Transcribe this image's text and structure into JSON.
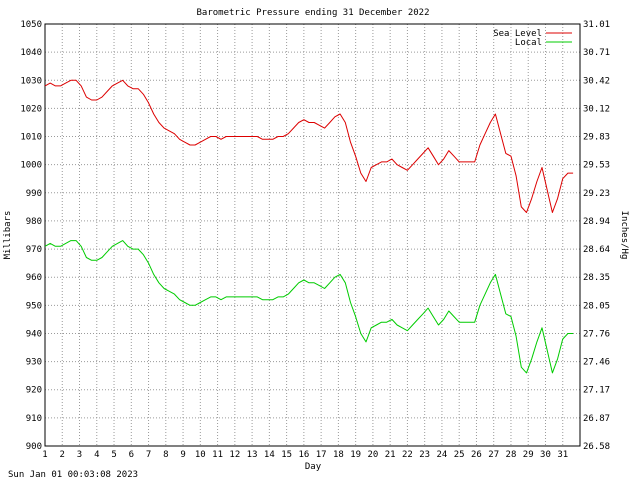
{
  "chart_data": {
    "type": "line",
    "title": "Barometric Pressure ending 31 December 2022",
    "xlabel": "Day",
    "ylabel": "Millibars",
    "ylabel_right": "Inches/Hg",
    "footer": "Sun Jan 01 00:03:08 2023",
    "xlim": [
      1,
      32
    ],
    "ylim": [
      900,
      1050
    ],
    "grid": true,
    "legend_position": "top-right",
    "x_ticks": [
      "1",
      "2",
      "3",
      "4",
      "5",
      "6",
      "7",
      "8",
      "9",
      "10",
      "11",
      "12",
      "13",
      "14",
      "15",
      "16",
      "17",
      "18",
      "19",
      "20",
      "21",
      "22",
      "23",
      "24",
      "25",
      "26",
      "27",
      "28",
      "29",
      "30",
      "31"
    ],
    "y_ticks_left": [
      "1050",
      "1040",
      "1030",
      "1020",
      "1010",
      "1000",
      "990",
      "980",
      "970",
      "960",
      "950",
      "940",
      "930",
      "920",
      "910",
      "900"
    ],
    "y_ticks_right": [
      "31.01",
      "30.71",
      "30.42",
      "30.12",
      "29.83",
      "29.53",
      "29.23",
      "28.94",
      "28.64",
      "28.35",
      "28.05",
      "27.76",
      "27.46",
      "27.17",
      "26.87",
      "26.58"
    ],
    "series": [
      {
        "name": "Sea Level",
        "color": "#dd0000",
        "x": [
          1.0,
          1.3,
          1.6,
          1.9,
          2.2,
          2.5,
          2.8,
          3.1,
          3.4,
          3.7,
          4.0,
          4.3,
          4.6,
          4.9,
          5.2,
          5.5,
          5.8,
          6.1,
          6.4,
          6.7,
          7.0,
          7.3,
          7.6,
          7.9,
          8.2,
          8.5,
          8.8,
          9.1,
          9.4,
          9.7,
          10.0,
          10.3,
          10.6,
          10.9,
          11.2,
          11.5,
          11.8,
          12.1,
          12.4,
          12.7,
          13.0,
          13.3,
          13.6,
          13.9,
          14.2,
          14.5,
          14.8,
          15.1,
          15.4,
          15.7,
          16.0,
          16.3,
          16.6,
          16.9,
          17.2,
          17.5,
          17.8,
          18.1,
          18.4,
          18.7,
          19.0,
          19.3,
          19.6,
          19.9,
          20.2,
          20.5,
          20.8,
          21.1,
          21.4,
          21.7,
          22.0,
          22.3,
          22.6,
          22.9,
          23.2,
          23.5,
          23.8,
          24.1,
          24.4,
          24.7,
          25.0,
          25.3,
          25.6,
          25.9,
          26.2,
          26.5,
          26.8,
          27.1,
          27.4,
          27.7,
          28.0,
          28.3,
          28.6,
          28.9,
          29.2,
          29.5,
          29.8,
          30.1,
          30.4,
          30.7,
          31.0,
          31.3,
          31.6
        ],
        "values": [
          1028,
          1029,
          1028,
          1028,
          1029,
          1030,
          1030,
          1028,
          1024,
          1023,
          1023,
          1024,
          1026,
          1028,
          1029,
          1030,
          1028,
          1027,
          1027,
          1025,
          1022,
          1018,
          1015,
          1013,
          1012,
          1011,
          1009,
          1008,
          1007,
          1007,
          1008,
          1009,
          1010,
          1010,
          1009,
          1010,
          1010,
          1010,
          1010,
          1010,
          1010,
          1010,
          1009,
          1009,
          1009,
          1010,
          1010,
          1011,
          1013,
          1015,
          1016,
          1015,
          1015,
          1014,
          1013,
          1015,
          1017,
          1018,
          1015,
          1008,
          1003,
          997,
          994,
          999,
          1000,
          1001,
          1001,
          1002,
          1000,
          999,
          998,
          1000,
          1002,
          1004,
          1006,
          1003,
          1000,
          1002,
          1005,
          1003,
          1001,
          1001,
          1001,
          1001,
          1007,
          1011,
          1015,
          1018,
          1011,
          1004,
          1003,
          996,
          985,
          983,
          988,
          994,
          999,
          991,
          983,
          988,
          995,
          997,
          997
        ]
      },
      {
        "name": "Local",
        "color": "#00cc00",
        "x": [
          1.0,
          1.3,
          1.6,
          1.9,
          2.2,
          2.5,
          2.8,
          3.1,
          3.4,
          3.7,
          4.0,
          4.3,
          4.6,
          4.9,
          5.2,
          5.5,
          5.8,
          6.1,
          6.4,
          6.7,
          7.0,
          7.3,
          7.6,
          7.9,
          8.2,
          8.5,
          8.8,
          9.1,
          9.4,
          9.7,
          10.0,
          10.3,
          10.6,
          10.9,
          11.2,
          11.5,
          11.8,
          12.1,
          12.4,
          12.7,
          13.0,
          13.3,
          13.6,
          13.9,
          14.2,
          14.5,
          14.8,
          15.1,
          15.4,
          15.7,
          16.0,
          16.3,
          16.6,
          16.9,
          17.2,
          17.5,
          17.8,
          18.1,
          18.4,
          18.7,
          19.0,
          19.3,
          19.6,
          19.9,
          20.2,
          20.5,
          20.8,
          21.1,
          21.4,
          21.7,
          22.0,
          22.3,
          22.6,
          22.9,
          23.2,
          23.5,
          23.8,
          24.1,
          24.4,
          24.7,
          25.0,
          25.3,
          25.6,
          25.9,
          26.2,
          26.5,
          26.8,
          27.1,
          27.4,
          27.7,
          28.0,
          28.3,
          28.6,
          28.9,
          29.2,
          29.5,
          29.8,
          30.1,
          30.4,
          30.7,
          31.0,
          31.3,
          31.6
        ],
        "values": [
          971,
          972,
          971,
          971,
          972,
          973,
          973,
          971,
          967,
          966,
          966,
          967,
          969,
          971,
          972,
          973,
          971,
          970,
          970,
          968,
          965,
          961,
          958,
          956,
          955,
          954,
          952,
          951,
          950,
          950,
          951,
          952,
          953,
          953,
          952,
          953,
          953,
          953,
          953,
          953,
          953,
          953,
          952,
          952,
          952,
          953,
          953,
          954,
          956,
          958,
          959,
          958,
          958,
          957,
          956,
          958,
          960,
          961,
          958,
          951,
          946,
          940,
          937,
          942,
          943,
          944,
          944,
          945,
          943,
          942,
          941,
          943,
          945,
          947,
          949,
          946,
          943,
          945,
          948,
          946,
          944,
          944,
          944,
          944,
          950,
          954,
          958,
          961,
          954,
          947,
          946,
          939,
          928,
          926,
          931,
          937,
          942,
          934,
          926,
          931,
          938,
          940,
          940
        ]
      }
    ]
  }
}
